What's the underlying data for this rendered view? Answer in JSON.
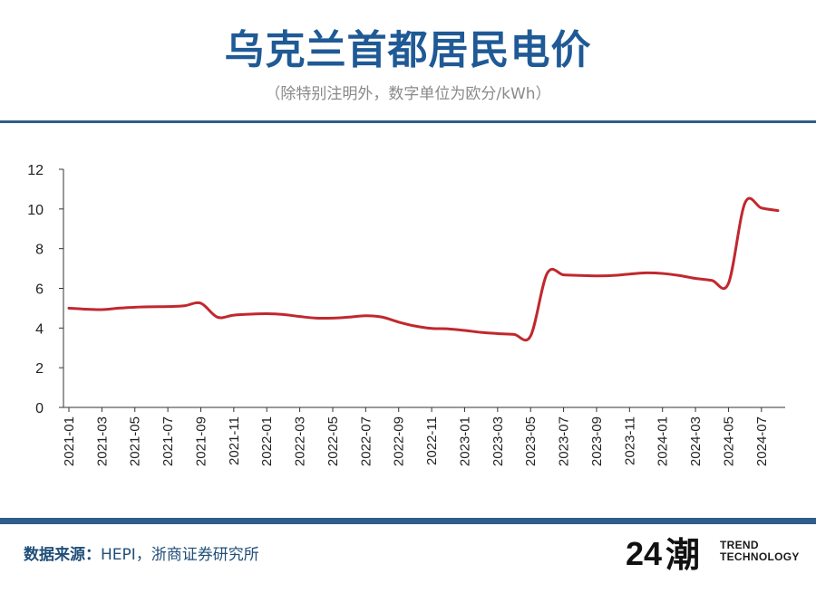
{
  "header": {
    "title": "乌克兰首都居民电价",
    "subtitle": "（除特别注明外，数字单位为欧分/kWh）"
  },
  "colors": {
    "title": "#1f5a96",
    "rule": "#2f5d8c",
    "line": "#c0282e",
    "source_label": "#1f4e79",
    "source_text": "#1f4e79"
  },
  "footer": {
    "source_label": "数据来源：",
    "source_text": "HEPI，浙商证券研究所",
    "logo_number": "24",
    "logo_mark": "潮",
    "logo_line1": "TREND",
    "logo_line2": "TECHNOLOGY"
  },
  "chart_data": {
    "type": "line",
    "title": "乌克兰首都居民电价",
    "subtitle": "（除特别注明外，数字单位为欧分/kWh）",
    "ylim": [
      0,
      12
    ],
    "yticks": [
      0,
      2,
      4,
      6,
      8,
      10,
      12
    ],
    "xticks": [
      "2021-01",
      "2021-03",
      "2021-05",
      "2021-07",
      "2021-09",
      "2021-11",
      "2022-01",
      "2022-03",
      "2022-05",
      "2022-07",
      "2022-09",
      "2022-11",
      "2023-01",
      "2023-03",
      "2023-05",
      "2023-07",
      "2023-09",
      "2023-11",
      "2024-01",
      "2024-03",
      "2024-05",
      "2024-07"
    ],
    "grid": false,
    "legend": "none",
    "series": [
      {
        "x": [
          "2021-01",
          "2021-02",
          "2021-03",
          "2021-04",
          "2021-05",
          "2021-06",
          "2021-07",
          "2021-08",
          "2021-09",
          "2021-10",
          "2021-11",
          "2021-12",
          "2022-01",
          "2022-02",
          "2022-03",
          "2022-04",
          "2022-05",
          "2022-06",
          "2022-07",
          "2022-08",
          "2022-09",
          "2022-10",
          "2022-11",
          "2022-12",
          "2023-01",
          "2023-02",
          "2023-03",
          "2023-04",
          "2023-05",
          "2023-06",
          "2023-07",
          "2023-08",
          "2023-09",
          "2023-10",
          "2023-11",
          "2023-12",
          "2024-01",
          "2024-02",
          "2024-03",
          "2024-04",
          "2024-05",
          "2024-06",
          "2024-07",
          "2024-08"
        ],
        "values": [
          5.0,
          4.95,
          4.93,
          5.0,
          5.05,
          5.07,
          5.08,
          5.12,
          5.25,
          4.55,
          4.65,
          4.7,
          4.72,
          4.68,
          4.58,
          4.5,
          4.5,
          4.55,
          4.62,
          4.55,
          4.3,
          4.1,
          3.98,
          3.96,
          3.88,
          3.78,
          3.72,
          3.68,
          3.6,
          6.75,
          6.68,
          6.65,
          6.63,
          6.65,
          6.72,
          6.78,
          6.75,
          6.65,
          6.5,
          6.4,
          6.25,
          10.3,
          10.05,
          9.92
        ]
      }
    ]
  }
}
